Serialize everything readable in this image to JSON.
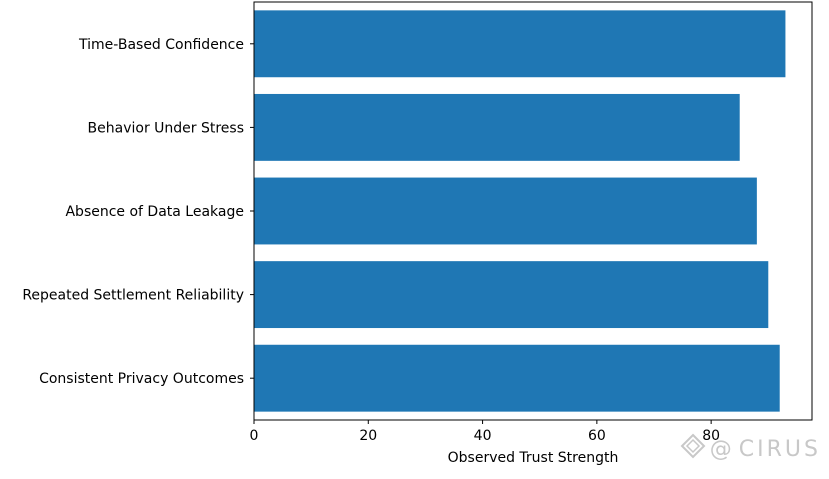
{
  "chart_data": {
    "type": "bar",
    "orientation": "horizontal",
    "categories": [
      "Consistent Privacy Outcomes",
      "Repeated Settlement Reliability",
      "Absence of Data Leakage",
      "Behavior Under Stress",
      "Time-Based Confidence"
    ],
    "values": [
      92,
      90,
      88,
      85,
      93
    ],
    "title": "",
    "xlabel": "Observed Trust Strength",
    "ylabel": "",
    "xlim": [
      0,
      97.65
    ],
    "xticks": [
      0,
      20,
      40,
      60,
      80
    ],
    "bar_color": "#1f77b4",
    "grid": false
  },
  "watermark": {
    "icon": "diamond-logo-icon",
    "at_sign": "@",
    "text": "CIRUS"
  }
}
